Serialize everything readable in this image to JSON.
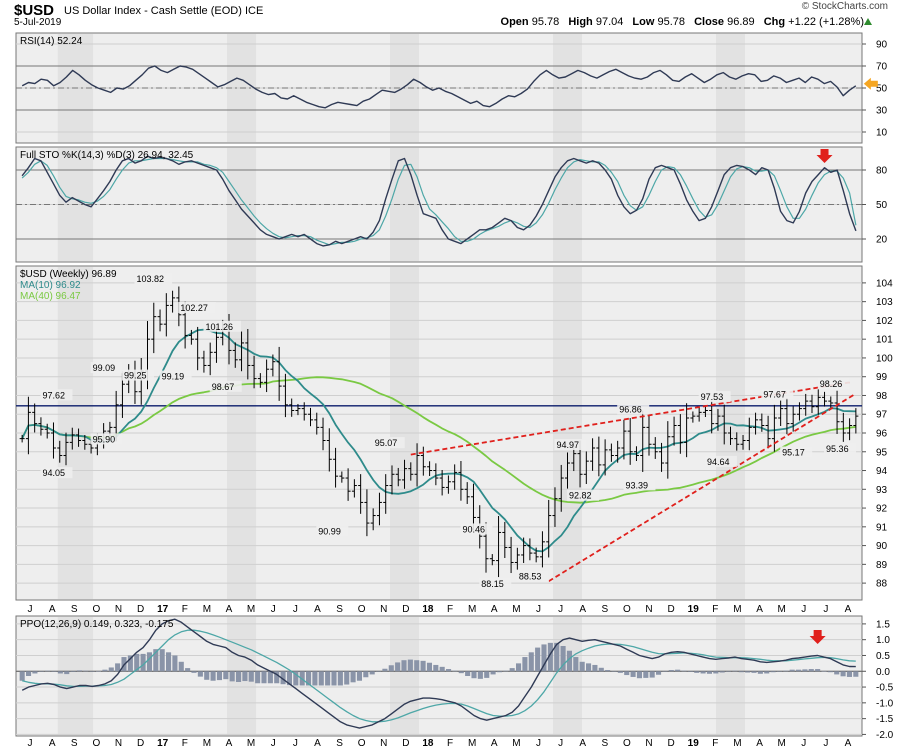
{
  "header": {
    "symbol": "$USD",
    "name": "US Dollar Index - Cash Settle (EOD)",
    "exchange": "ICE",
    "date": "5-Jul-2019",
    "brand": "© StockCharts.com",
    "open_label": "Open",
    "open": "95.78",
    "high_label": "High",
    "high": "97.04",
    "low_label": "Low",
    "low": "95.78",
    "close_label": "Close",
    "close": "96.89",
    "chg_label": "Chg",
    "chg": "+1.22 (+1.28%)"
  },
  "colors": {
    "price_bar": "#000000",
    "ma10": "#2e8b8b",
    "ma40": "#7ac943",
    "trendline": "#e0201c",
    "hline": "#0b1c6b",
    "indicator_line": "#2f3a55",
    "indicator_signal": "#4da7a7",
    "histogram": "#8a94a8",
    "panel_bg": "#eeeeee",
    "band_bg": "#e2e2e2",
    "arrow_red": "#e0201c",
    "arrow_orange": "#f5a623"
  },
  "chart_data": [
    {
      "type": "line",
      "panel": "rsi",
      "legend": "RSI(14) 52.24",
      "yticks": [
        90,
        70,
        50,
        30,
        10
      ],
      "ylim": [
        0,
        100
      ],
      "reference_lines": [
        70,
        30
      ],
      "series": [
        {
          "values": [
            52,
            55,
            54,
            58,
            57,
            52,
            55,
            60,
            66,
            62,
            57,
            53,
            50,
            48,
            46,
            50,
            49,
            52,
            57,
            62,
            68,
            70,
            66,
            64,
            67,
            70,
            69,
            67,
            63,
            59,
            55,
            51,
            53,
            56,
            59,
            57,
            53,
            49,
            46,
            44,
            45,
            41,
            40,
            43,
            40,
            37,
            35,
            33,
            32,
            35,
            37,
            36,
            35,
            34,
            38,
            40,
            44,
            48,
            47,
            46,
            49,
            53,
            58,
            55,
            51,
            48,
            50,
            47,
            45,
            42,
            39,
            36,
            38,
            34,
            33,
            36,
            40,
            43,
            42,
            45,
            49,
            56,
            62,
            66,
            62,
            59,
            60,
            63,
            66,
            64,
            61,
            59,
            62,
            65,
            67,
            64,
            61,
            59,
            58,
            60,
            64,
            66,
            62,
            57,
            56,
            60,
            63,
            59,
            55,
            58,
            62,
            64,
            60,
            58,
            61,
            63,
            62,
            56,
            57,
            61,
            59,
            55,
            57,
            59,
            55,
            60,
            58,
            54,
            56,
            51,
            43,
            48,
            52
          ]
        }
      ],
      "arrows": [
        {
          "direction": "left",
          "color": "orange"
        }
      ]
    },
    {
      "type": "line",
      "panel": "stochastic",
      "legend": "Full STO %K(14,3) %D(3) 26.94, 32.45",
      "yticks": [
        80,
        50,
        20
      ],
      "ylim": [
        0,
        100
      ],
      "reference_lines": [
        80,
        50,
        20
      ],
      "series": [
        {
          "name": "%K(14,3)",
          "values": [
            75,
            82,
            90,
            88,
            78,
            68,
            58,
            52,
            56,
            53,
            50,
            48,
            55,
            62,
            70,
            80,
            88,
            90,
            86,
            88,
            92,
            90,
            91,
            90,
            88,
            85,
            87,
            88,
            86,
            84,
            82,
            80,
            72,
            62,
            54,
            46,
            40,
            34,
            28,
            24,
            22,
            20,
            22,
            24,
            22,
            24,
            20,
            16,
            14,
            15,
            18,
            16,
            18,
            20,
            22,
            20,
            26,
            36,
            55,
            72,
            88,
            90,
            76,
            58,
            42,
            40,
            38,
            28,
            20,
            18,
            16,
            20,
            24,
            28,
            28,
            30,
            34,
            38,
            36,
            30,
            28,
            32,
            40,
            50,
            62,
            74,
            82,
            88,
            90,
            88,
            86,
            88,
            86,
            80,
            72,
            58,
            48,
            42,
            45,
            55,
            72,
            82,
            84,
            82,
            80,
            68,
            54,
            44,
            36,
            38,
            48,
            62,
            76,
            82,
            84,
            83,
            80,
            76,
            82,
            80,
            64,
            44,
            36,
            34,
            44,
            60,
            70,
            76,
            82,
            78,
            80,
            62,
            42,
            27
          ]
        },
        {
          "name": "%D(3)",
          "values": [
            73,
            78,
            85,
            88,
            84,
            75,
            65,
            57,
            55,
            54,
            52,
            51,
            53,
            57,
            63,
            72,
            80,
            86,
            88,
            88,
            89,
            90,
            90,
            90,
            89,
            88,
            87,
            87,
            87,
            85,
            84,
            82,
            78,
            70,
            62,
            54,
            47,
            40,
            34,
            29,
            25,
            22,
            21,
            22,
            23,
            23,
            22,
            19,
            17,
            15,
            16,
            17,
            17,
            18,
            20,
            21,
            23,
            28,
            40,
            55,
            72,
            84,
            85,
            74,
            58,
            46,
            41,
            35,
            29,
            22,
            18,
            18,
            20,
            24,
            27,
            29,
            31,
            34,
            36,
            34,
            31,
            30,
            34,
            41,
            51,
            63,
            73,
            82,
            87,
            89,
            88,
            87,
            87,
            84,
            78,
            70,
            58,
            49,
            45,
            48,
            58,
            70,
            80,
            83,
            82,
            76,
            66,
            55,
            45,
            39,
            41,
            50,
            62,
            74,
            81,
            83,
            82,
            79,
            79,
            80,
            75,
            62,
            48,
            38,
            38,
            46,
            58,
            69,
            76,
            79,
            79,
            73,
            60,
            32
          ]
        }
      ],
      "arrows": [
        {
          "direction": "down",
          "color": "red"
        }
      ]
    },
    {
      "type": "ohlc",
      "panel": "price",
      "legend": "$USD (Weekly) 96.89",
      "ma_legend": [
        "MA(10) 96.92",
        "MA(40) 96.47"
      ],
      "yticks": [
        104,
        103,
        102,
        101,
        100,
        99,
        98,
        97,
        96,
        95,
        94,
        93,
        92,
        91,
        90,
        89,
        88
      ],
      "ylim": [
        87.1,
        104.9
      ],
      "horizontal_line": 97.45,
      "closes": [
        95.7,
        97.1,
        96.5,
        96.2,
        96.0,
        95.2,
        94.8,
        95.5,
        95.9,
        95.6,
        95.4,
        95.2,
        95.6,
        96.1,
        96.3,
        97.5,
        98.6,
        99.2,
        98.2,
        99.3,
        101.0,
        102.2,
        101.8,
        102.8,
        103.2,
        102.3,
        101.2,
        101.0,
        100.0,
        99.6,
        100.3,
        101.1,
        101.6,
        100.4,
        99.9,
        100.8,
        99.6,
        98.9,
        98.7,
        99.4,
        99.8,
        98.5,
        97.5,
        97.2,
        97.3,
        97.0,
        96.7,
        96.3,
        95.6,
        94.6,
        93.7,
        93.6,
        92.9,
        93.2,
        92.3,
        91.2,
        91.6,
        92.3,
        93.2,
        93.8,
        93.5,
        94.1,
        93.8,
        94.8,
        94.2,
        94.0,
        93.6,
        93.1,
        93.4,
        93.9,
        93.0,
        92.6,
        91.5,
        90.5,
        89.3,
        89.2,
        90.7,
        89.9,
        89.1,
        89.5,
        90.0,
        89.6,
        89.4,
        90.2,
        91.6,
        92.5,
        93.6,
        94.4,
        94.9,
        93.8,
        94.5,
        95.2,
        94.3,
        95.1,
        94.8,
        95.2,
        96.1,
        95.0,
        94.8,
        96.3,
        95.4,
        95.0,
        94.4,
        95.8,
        96.4,
        95.5,
        96.8,
        96.9,
        97.1,
        97.2,
        96.5,
        96.9,
        96.0,
        95.7,
        95.4,
        95.6,
        96.3,
        96.7,
        96.4,
        95.7,
        96.8,
        97.3,
        96.5,
        97.0,
        97.3,
        97.7,
        97.4,
        97.9,
        97.7,
        97.6,
        96.6,
        96.0,
        96.4,
        96.9
      ],
      "labels": [
        {
          "text": "97.62"
        },
        {
          "text": "94.05"
        },
        {
          "text": "95.90"
        },
        {
          "text": "99.09"
        },
        {
          "text": "99.25"
        },
        {
          "text": "103.82"
        },
        {
          "text": "102.27"
        },
        {
          "text": "99.19"
        },
        {
          "text": "101.26"
        },
        {
          "text": "98.67"
        },
        {
          "text": "90.99"
        },
        {
          "text": "95.07"
        },
        {
          "text": "90.46"
        },
        {
          "text": "88.15"
        },
        {
          "text": "88.53"
        },
        {
          "text": "94.97"
        },
        {
          "text": "92.82"
        },
        {
          "text": "96.86"
        },
        {
          "text": "93.39"
        },
        {
          "text": "97.53"
        },
        {
          "text": "94.64"
        },
        {
          "text": "97.67"
        },
        {
          "text": "95.17"
        },
        {
          "text": "98.26"
        },
        {
          "text": "95.36"
        }
      ]
    },
    {
      "type": "line",
      "panel": "ppo",
      "legend": "PPO(12,26,9) 0.149, 0.323, -0.175",
      "yticks": [
        1.5,
        1.0,
        0.5,
        0.0,
        -0.5,
        -1.0,
        -1.5,
        -2.0
      ],
      "ylim": [
        -2.05,
        1.75
      ],
      "series": [
        {
          "name": "PPO(12,26,9)",
          "values": [
            -0.6,
            -0.5,
            -0.45,
            -0.4,
            -0.38,
            -0.42,
            -0.5,
            -0.55,
            -0.5,
            -0.45,
            -0.45,
            -0.48,
            -0.45,
            -0.4,
            -0.3,
            -0.1,
            0.2,
            0.4,
            0.6,
            0.75,
            1.0,
            1.3,
            1.5,
            1.6,
            1.65,
            1.55,
            1.4,
            1.25,
            1.1,
            0.95,
            0.85,
            0.8,
            0.75,
            0.6,
            0.5,
            0.45,
            0.35,
            0.2,
            0.1,
            0.0,
            -0.1,
            -0.25,
            -0.4,
            -0.55,
            -0.7,
            -0.85,
            -1.0,
            -1.15,
            -1.3,
            -1.45,
            -1.6,
            -1.7,
            -1.75,
            -1.8,
            -1.75,
            -1.7,
            -1.6,
            -1.5,
            -1.35,
            -1.2,
            -1.05,
            -0.95,
            -0.9,
            -0.85,
            -0.85,
            -0.87,
            -0.9,
            -0.95,
            -1.0,
            -1.1,
            -1.25,
            -1.4,
            -1.5,
            -1.55,
            -1.5,
            -1.45,
            -1.4,
            -1.3,
            -1.1,
            -0.8,
            -0.5,
            -0.15,
            0.2,
            0.55,
            0.85,
            1.0,
            1.05,
            1.0,
            0.95,
            0.98,
            1.0,
            0.95,
            0.9,
            0.85,
            0.8,
            0.7,
            0.6,
            0.5,
            0.45,
            0.4,
            0.45,
            0.55,
            0.6,
            0.62,
            0.6,
            0.55,
            0.5,
            0.45,
            0.4,
            0.38,
            0.4,
            0.42,
            0.45,
            0.4,
            0.38,
            0.35,
            0.3,
            0.28,
            0.3,
            0.32,
            0.35,
            0.4,
            0.42,
            0.45,
            0.48,
            0.5,
            0.45,
            0.4,
            0.3,
            0.2,
            0.15,
            0.149
          ]
        },
        {
          "name": "signal",
          "values": [
            -0.3,
            -0.35,
            -0.38,
            -0.4,
            -0.4,
            -0.41,
            -0.43,
            -0.46,
            -0.48,
            -0.48,
            -0.47,
            -0.47,
            -0.46,
            -0.45,
            -0.42,
            -0.35,
            -0.25,
            -0.1,
            0.05,
            0.2,
            0.4,
            0.6,
            0.8,
            1.0,
            1.15,
            1.25,
            1.3,
            1.3,
            1.27,
            1.22,
            1.15,
            1.08,
            1.0,
            0.92,
            0.84,
            0.76,
            0.68,
            0.58,
            0.48,
            0.38,
            0.28,
            0.16,
            0.04,
            -0.1,
            -0.25,
            -0.4,
            -0.55,
            -0.7,
            -0.85,
            -1.0,
            -1.15,
            -1.28,
            -1.4,
            -1.5,
            -1.56,
            -1.6,
            -1.6,
            -1.58,
            -1.54,
            -1.48,
            -1.4,
            -1.32,
            -1.25,
            -1.18,
            -1.12,
            -1.07,
            -1.04,
            -1.02,
            -1.02,
            -1.04,
            -1.1,
            -1.18,
            -1.26,
            -1.34,
            -1.4,
            -1.42,
            -1.42,
            -1.4,
            -1.35,
            -1.25,
            -1.1,
            -0.9,
            -0.65,
            -0.35,
            -0.05,
            0.2,
            0.4,
            0.55,
            0.65,
            0.73,
            0.8,
            0.84,
            0.86,
            0.86,
            0.85,
            0.82,
            0.78,
            0.72,
            0.66,
            0.6,
            0.56,
            0.55,
            0.56,
            0.57,
            0.58,
            0.57,
            0.55,
            0.52,
            0.48,
            0.45,
            0.44,
            0.43,
            0.43,
            0.43,
            0.42,
            0.4,
            0.38,
            0.35,
            0.33,
            0.33,
            0.33,
            0.35,
            0.37,
            0.39,
            0.41,
            0.43,
            0.44,
            0.43,
            0.4,
            0.36,
            0.33,
            0.323
          ]
        },
        {
          "name": "histogram",
          "values": [
            -0.175
          ]
        }
      ],
      "arrows": [
        {
          "direction": "down",
          "color": "red"
        }
      ]
    }
  ],
  "x_axis": {
    "months": [
      "J",
      "A",
      "S",
      "O",
      "N",
      "D",
      "17",
      "F",
      "M",
      "A",
      "M",
      "J",
      "J",
      "A",
      "S",
      "O",
      "N",
      "D",
      "18",
      "F",
      "M",
      "A",
      "M",
      "J",
      "J",
      "A",
      "S",
      "O",
      "N",
      "D",
      "19",
      "F",
      "M",
      "A",
      "M",
      "J",
      "J",
      "A"
    ]
  }
}
